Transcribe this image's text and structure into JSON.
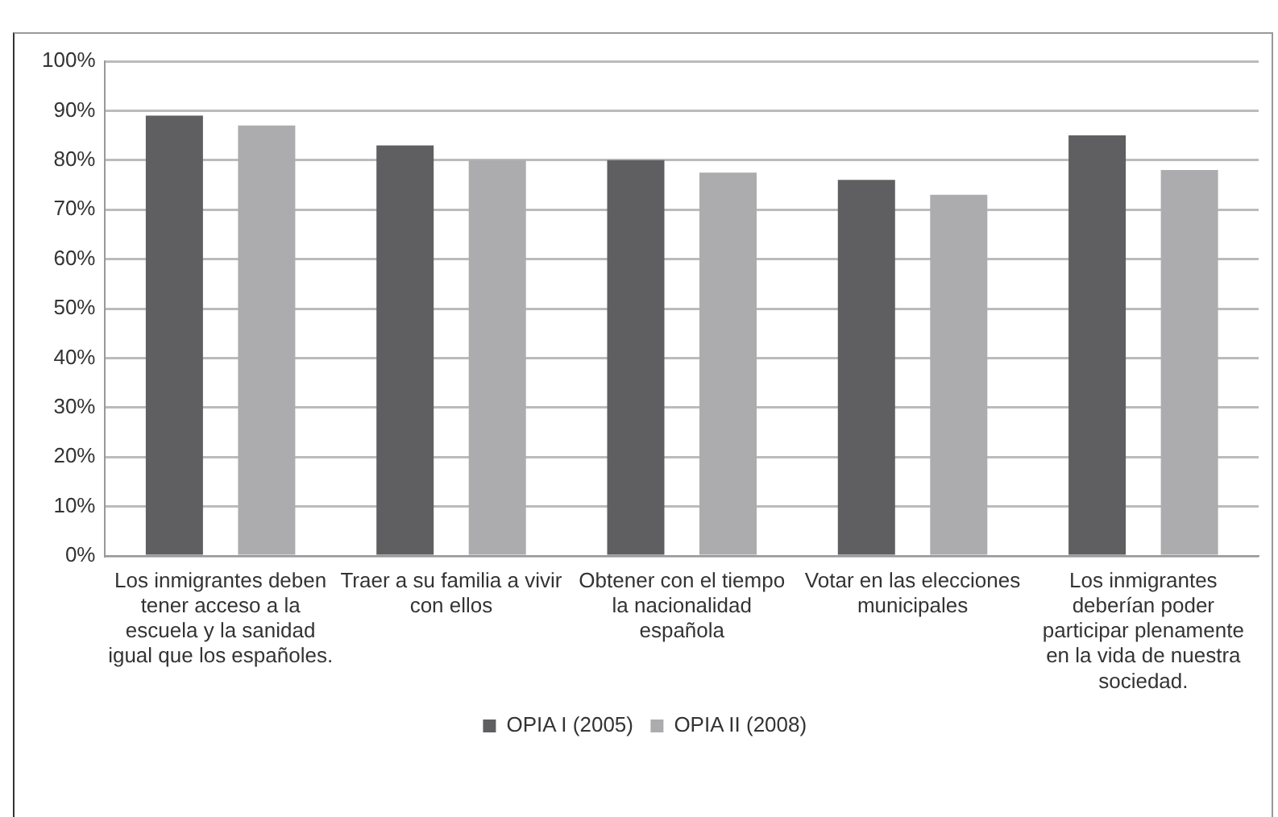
{
  "chart_data": {
    "type": "bar",
    "categories": [
      "Los inmigrantes deben tener acceso a la escuela y la sanidad igual que los españoles.",
      "Traer a su familia a vivir con ellos",
      "Obtener con el tiempo la nacionalidad española",
      "Votar en las elecciones municipales",
      "Los inmigrantes deberían poder participar plenamente en la vida de nuestra sociedad."
    ],
    "series": [
      {
        "name": "OPIA I (2005)",
        "color": "#5f5f61",
        "values": [
          89,
          83,
          80,
          76,
          85
        ]
      },
      {
        "name": "OPIA II (2008)",
        "color": "#acacae",
        "values": [
          87,
          80,
          77.5,
          73,
          78
        ]
      }
    ],
    "ylim": [
      0,
      100
    ],
    "yticks": [
      {
        "value": 0,
        "label": "0%"
      },
      {
        "value": 10,
        "label": "10%"
      },
      {
        "value": 20,
        "label": "20%"
      },
      {
        "value": 30,
        "label": "30%"
      },
      {
        "value": 40,
        "label": "40%"
      },
      {
        "value": 50,
        "label": "50%"
      },
      {
        "value": 60,
        "label": "60%"
      },
      {
        "value": 70,
        "label": "70%"
      },
      {
        "value": 80,
        "label": "80%"
      },
      {
        "value": 90,
        "label": "90%"
      },
      {
        "value": 100,
        "label": "100%"
      }
    ],
    "grid": "y",
    "legend": "bottom"
  }
}
